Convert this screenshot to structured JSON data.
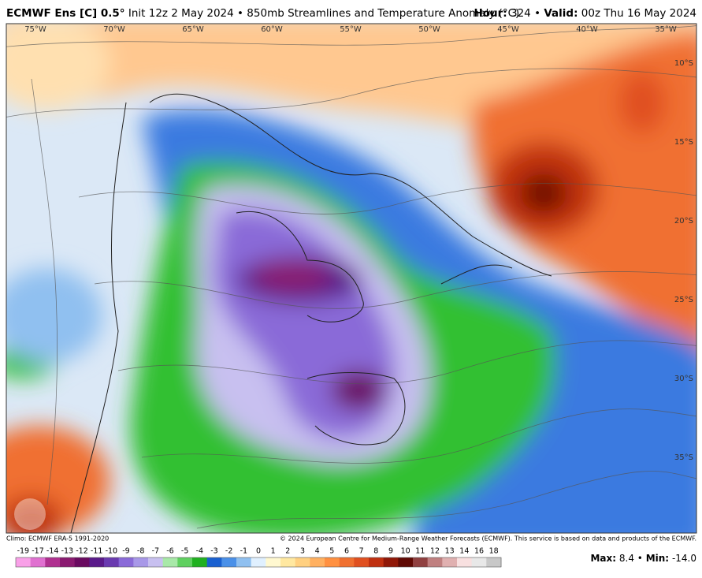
{
  "header": {
    "title_bold": "ECMWF Ens [C] 0.5°",
    "title_rest": "Init 12z 2 May 2024",
    "separator": "•",
    "product": "850mb Streamlines and Temperature Anomaly (°C)",
    "hour_label": "Hour:",
    "hour": "324",
    "valid_label": "Valid:",
    "valid": "00z Thu 16 May 2024"
  },
  "map": {
    "longitudes": [
      "75°W",
      "70°W",
      "65°W",
      "60°W",
      "55°W",
      "50°W",
      "45°W",
      "40°W",
      "35°W"
    ],
    "latitudes": [
      "10°S",
      "15°S",
      "20°S",
      "25°S",
      "30°S",
      "35°S"
    ]
  },
  "footer": {
    "climo": "Climo: ECMWF ERA-5 1991-2020",
    "copyright": "© 2024 European Centre for Medium-Range Weather Forecasts (ECMWF). This service is based on data and products of the ECMWF.",
    "max_label": "Max:",
    "max_value": "8.4",
    "min_label": "Min:",
    "min_value": "-14.0"
  },
  "colorbar": {
    "labels": [
      -19,
      -17,
      -14,
      -13,
      -12,
      -11,
      -10,
      -9,
      -8,
      -7,
      -6,
      -5,
      -4,
      -3,
      -2,
      -1,
      0,
      1,
      2,
      3,
      4,
      5,
      6,
      7,
      8,
      9,
      10,
      11,
      12,
      13,
      14,
      16,
      18
    ],
    "colors": [
      "#f9a0e8",
      "#e070d0",
      "#b03090",
      "#8a1a70",
      "#6a0a60",
      "#5a1a8a",
      "#6a3ab0",
      "#8a6ad8",
      "#a898e8",
      "#c8c0f0",
      "#a8e8a8",
      "#60d060",
      "#20b020",
      "#1a60d0",
      "#4a90e8",
      "#90c0f0",
      "#e0f0ff",
      "#fff8d0",
      "#ffe8a0",
      "#ffd080",
      "#ffb060",
      "#ff9040",
      "#f07030",
      "#e05020",
      "#c03010",
      "#901808",
      "#600a04",
      "#904040",
      "#c08080",
      "#e0b0b0",
      "#f8e0e0",
      "#e8e8e8",
      "#c8c8c8"
    ]
  }
}
